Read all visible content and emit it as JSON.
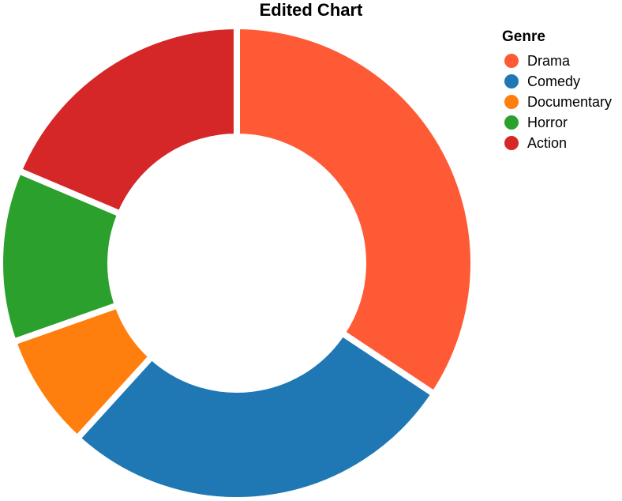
{
  "chart_data": {
    "type": "pie",
    "variant": "donut",
    "title": "Edited Chart",
    "legend": {
      "title": "Genre",
      "placement": "top-right"
    },
    "categories": [
      "Drama",
      "Comedy",
      "Documentary",
      "Horror",
      "Action"
    ],
    "values": [
      35,
      28,
      8,
      12,
      19
    ],
    "colors": [
      "#ff5a36",
      "#1f77b4",
      "#ff7f0e",
      "#2ca02c",
      "#d62728"
    ]
  }
}
